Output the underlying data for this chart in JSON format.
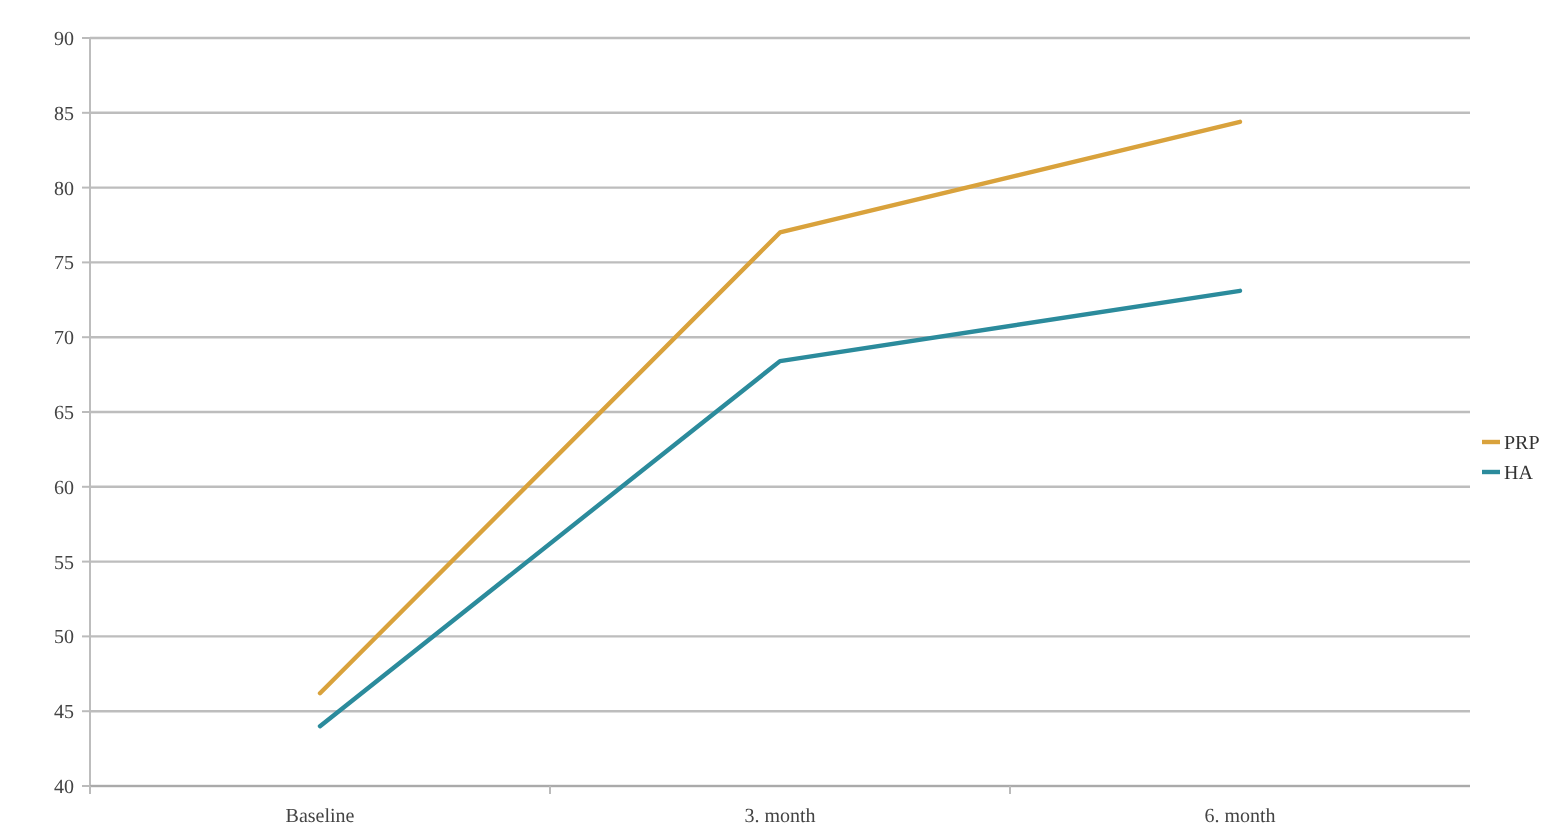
{
  "chart_data": {
    "type": "line",
    "categories": [
      "Baseline",
      "3. month",
      "6. month"
    ],
    "series": [
      {
        "name": "PRP",
        "color": "#d9a23c",
        "values": [
          46.2,
          77.0,
          84.4
        ]
      },
      {
        "name": "HA",
        "color": "#2b8b9c",
        "values": [
          44.0,
          68.4,
          73.1
        ]
      }
    ],
    "ylim": [
      40,
      90
    ],
    "yticks": [
      40,
      45,
      50,
      55,
      60,
      65,
      70,
      75,
      80,
      85,
      90
    ],
    "grid": "y",
    "legend": "right",
    "marker": "none"
  }
}
